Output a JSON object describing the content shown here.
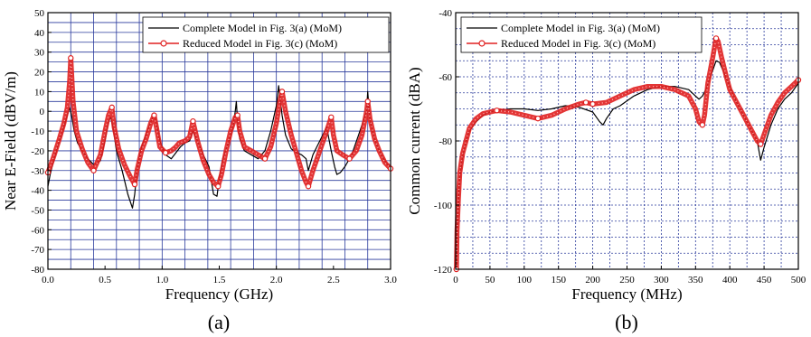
{
  "chart_data": [
    {
      "type": "line",
      "panel_label": "(a)",
      "xlabel": "Frequency (GHz)",
      "ylabel": "Near E-Field (dBV/m)",
      "xlim": [
        0,
        3
      ],
      "ylim": [
        -80,
        50
      ],
      "x_ticks": [
        "0.0",
        "0.5",
        "1.0",
        "1.5",
        "2.0",
        "2.5",
        "3.0"
      ],
      "y_ticks": [
        "50",
        "40",
        "30",
        "20",
        "10",
        "0",
        "-10",
        "-20",
        "-30",
        "-40",
        "-50",
        "-60",
        "-70",
        "-80"
      ],
      "grid": true,
      "legend_position": "top-right",
      "series": [
        {
          "name": "Complete Model in Fig. 3(a) (MoM)",
          "color": "#000000",
          "marker": "none",
          "x": [
            0.0,
            0.02,
            0.05,
            0.1,
            0.14,
            0.17,
            0.19,
            0.21,
            0.23,
            0.26,
            0.3,
            0.35,
            0.4,
            0.46,
            0.5,
            0.53,
            0.55,
            0.57,
            0.6,
            0.65,
            0.7,
            0.74,
            0.76,
            0.78,
            0.82,
            0.87,
            0.91,
            0.93,
            0.95,
            0.98,
            1.03,
            1.08,
            1.12,
            1.16,
            1.2,
            1.24,
            1.27,
            1.31,
            1.36,
            1.41,
            1.45,
            1.48,
            1.5,
            1.53,
            1.58,
            1.62,
            1.64,
            1.65,
            1.66,
            1.68,
            1.72,
            1.78,
            1.84,
            1.9,
            1.95,
            2.0,
            2.02,
            2.03,
            2.05,
            2.08,
            2.13,
            2.18,
            2.22,
            2.26,
            2.28,
            2.32,
            2.38,
            2.44,
            2.48,
            2.51,
            2.53,
            2.56,
            2.6,
            2.66,
            2.72,
            2.76,
            2.79,
            2.8,
            2.82,
            2.86,
            2.9,
            2.95,
            3.0
          ],
          "y": [
            -38,
            -32,
            -25,
            -15,
            -8,
            -2,
            2,
            -3,
            -10,
            -16,
            -20,
            -24,
            -27,
            -25,
            -15,
            -5,
            -3,
            -8,
            -20,
            -30,
            -42,
            -49,
            -42,
            -30,
            -18,
            -10,
            -4,
            -2,
            -6,
            -15,
            -22,
            -24,
            -21,
            -18,
            -16,
            -15,
            -10,
            -15,
            -22,
            -28,
            -42,
            -43,
            -34,
            -24,
            -16,
            -8,
            0,
            5,
            -5,
            -14,
            -20,
            -22,
            -24,
            -20,
            -10,
            3,
            13,
            8,
            -2,
            -12,
            -19,
            -21,
            -22,
            -24,
            -30,
            -22,
            -15,
            -8,
            -20,
            -28,
            -32,
            -31,
            -28,
            -22,
            -12,
            -5,
            0,
            10,
            -5,
            -14,
            -20,
            -25,
            -29
          ]
        },
        {
          "name": "Reduced  Model in Fig. 3(c) (MoM)",
          "color": "#e02020",
          "marker": "circle",
          "x": [
            0.0,
            0.02,
            0.05,
            0.1,
            0.14,
            0.17,
            0.19,
            0.2,
            0.22,
            0.25,
            0.3,
            0.35,
            0.4,
            0.46,
            0.5,
            0.53,
            0.56,
            0.58,
            0.62,
            0.67,
            0.72,
            0.76,
            0.78,
            0.82,
            0.86,
            0.9,
            0.93,
            0.95,
            0.98,
            1.03,
            1.08,
            1.12,
            1.15,
            1.2,
            1.24,
            1.27,
            1.31,
            1.36,
            1.41,
            1.45,
            1.49,
            1.52,
            1.56,
            1.6,
            1.64,
            1.66,
            1.68,
            1.72,
            1.78,
            1.84,
            1.9,
            1.95,
            2.0,
            2.03,
            2.05,
            2.08,
            2.13,
            2.18,
            2.22,
            2.26,
            2.28,
            2.32,
            2.38,
            2.44,
            2.48,
            2.5,
            2.53,
            2.58,
            2.64,
            2.7,
            2.75,
            2.79,
            2.8,
            2.82,
            2.86,
            2.9,
            2.95,
            3.0
          ],
          "y": [
            -31,
            -28,
            -23,
            -14,
            -6,
            2,
            15,
            27,
            5,
            -10,
            -19,
            -26,
            -30,
            -22,
            -10,
            -2,
            2,
            -8,
            -19,
            -27,
            -33,
            -37,
            -30,
            -20,
            -14,
            -6,
            -2,
            -8,
            -18,
            -21,
            -20,
            -18,
            -16,
            -15,
            -13,
            -5,
            -15,
            -25,
            -32,
            -36,
            -38,
            -32,
            -20,
            -10,
            -3,
            -2,
            -10,
            -18,
            -20,
            -22,
            -24,
            -18,
            -6,
            5,
            10,
            0,
            -12,
            -22,
            -30,
            -36,
            -38,
            -30,
            -20,
            -10,
            -3,
            -12,
            -20,
            -22,
            -24,
            -20,
            -12,
            0,
            5,
            -4,
            -14,
            -20,
            -26,
            -29
          ]
        }
      ]
    },
    {
      "type": "line",
      "panel_label": "(b)",
      "xlabel": "Frequency (MHz)",
      "ylabel": "Common current (dBA)",
      "xlim": [
        0,
        500
      ],
      "ylim": [
        -120,
        -40
      ],
      "x_ticks": [
        "0",
        "50",
        "100",
        "150",
        "200",
        "250",
        "300",
        "350",
        "400",
        "450",
        "500"
      ],
      "y_ticks": [
        "-40",
        "-60",
        "-80",
        "-100",
        "-120"
      ],
      "grid": true,
      "legend_position": "top-left",
      "series": [
        {
          "name": "Complete Model in Fig. 3(a) (MoM)",
          "color": "#000000",
          "marker": "none",
          "x": [
            1,
            2,
            4,
            6,
            10,
            15,
            20,
            30,
            40,
            50,
            60,
            80,
            100,
            120,
            140,
            160,
            180,
            200,
            210,
            215,
            220,
            230,
            240,
            260,
            280,
            300,
            320,
            340,
            350,
            355,
            360,
            365,
            370,
            375,
            380,
            385,
            390,
            400,
            410,
            420,
            430,
            440,
            445,
            450,
            460,
            470,
            480,
            490,
            500
          ],
          "y": [
            -120,
            -110,
            -100,
            -92,
            -85,
            -80,
            -77,
            -74,
            -72,
            -71,
            -70.5,
            -70,
            -70,
            -70.5,
            -70,
            -69,
            -69.5,
            -71,
            -74,
            -75,
            -73,
            -70,
            -69,
            -66,
            -64,
            -63,
            -63,
            -64,
            -66,
            -67,
            -66,
            -64,
            -61,
            -58,
            -55,
            -55.5,
            -58,
            -63,
            -68,
            -72,
            -76,
            -80,
            -86,
            -82,
            -75,
            -70,
            -67,
            -65,
            -62
          ]
        },
        {
          "name": "Reduced  Model in Fig. 3(c) (MoM)",
          "color": "#e02020",
          "marker": "circle",
          "x": [
            1,
            2,
            4,
            6,
            10,
            15,
            20,
            30,
            40,
            50,
            60,
            80,
            100,
            120,
            140,
            160,
            180,
            190,
            200,
            220,
            240,
            260,
            280,
            300,
            320,
            340,
            350,
            355,
            360,
            363,
            368,
            375,
            380,
            383,
            388,
            395,
            400,
            410,
            420,
            430,
            440,
            445,
            450,
            460,
            470,
            480,
            490,
            500
          ],
          "y": [
            -120,
            -108,
            -98,
            -90,
            -84,
            -80,
            -76,
            -73,
            -71.5,
            -71,
            -70.5,
            -71,
            -72,
            -73,
            -72,
            -70,
            -68.5,
            -68,
            -68.5,
            -68,
            -66,
            -64,
            -63,
            -63,
            -64,
            -66,
            -70,
            -74,
            -75,
            -72,
            -62,
            -54,
            -48,
            -49,
            -54,
            -60,
            -64,
            -68,
            -72,
            -76,
            -80,
            -81,
            -78,
            -72,
            -68,
            -65,
            -63,
            -61
          ]
        }
      ]
    }
  ]
}
